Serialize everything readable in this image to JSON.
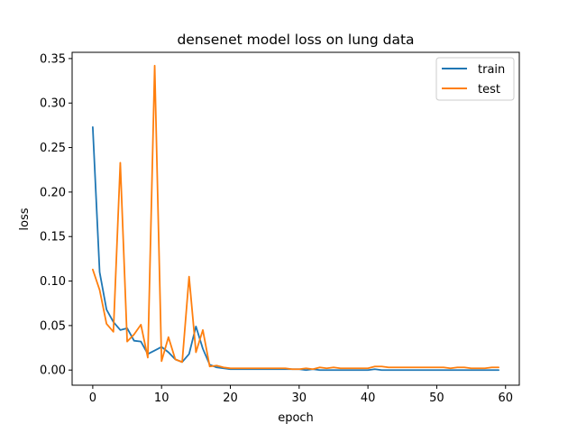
{
  "chart_data": {
    "type": "line",
    "title": "densenet model loss on lung data",
    "xlabel": "epoch",
    "ylabel": "loss",
    "xlim": [
      -3,
      62
    ],
    "ylim": [
      -0.017,
      0.357
    ],
    "xticks": [
      0,
      10,
      20,
      30,
      40,
      50,
      60
    ],
    "yticks": [
      0.0,
      0.05,
      0.1,
      0.15,
      0.2,
      0.25,
      0.3,
      0.35
    ],
    "ytick_labels": [
      "0.00",
      "0.05",
      "0.10",
      "0.15",
      "0.20",
      "0.25",
      "0.30",
      "0.35"
    ],
    "grid": false,
    "legend_position": "top-right",
    "x": [
      0,
      1,
      2,
      3,
      4,
      5,
      6,
      7,
      8,
      9,
      10,
      11,
      12,
      13,
      14,
      15,
      16,
      17,
      18,
      19,
      20,
      21,
      22,
      23,
      24,
      25,
      26,
      27,
      28,
      29,
      30,
      31,
      32,
      33,
      34,
      35,
      36,
      37,
      38,
      39,
      40,
      41,
      42,
      43,
      44,
      45,
      46,
      47,
      48,
      49,
      50,
      51,
      52,
      53,
      54,
      55,
      56,
      57,
      58,
      59
    ],
    "series": [
      {
        "name": "train",
        "color": "#1f77b4",
        "values": [
          0.273,
          0.11,
          0.068,
          0.054,
          0.045,
          0.047,
          0.033,
          0.032,
          0.018,
          0.022,
          0.026,
          0.02,
          0.012,
          0.009,
          0.018,
          0.049,
          0.024,
          0.006,
          0.003,
          0.002,
          0.001,
          0.001,
          0.001,
          0.001,
          0.001,
          0.001,
          0.001,
          0.001,
          0.001,
          0.001,
          0.001,
          0.0,
          0.001,
          0.0,
          0.0,
          0.0,
          0.0,
          0.0,
          0.0,
          0.0,
          0.0,
          0.001,
          0.0,
          0.0,
          0.0,
          0.0,
          0.0,
          0.0,
          0.0,
          0.0,
          0.0,
          0.0,
          0.0,
          0.0,
          0.0,
          0.0,
          0.0,
          0.0,
          0.0,
          0.0
        ]
      },
      {
        "name": "test",
        "color": "#ff7f0e",
        "values": [
          0.113,
          0.09,
          0.052,
          0.043,
          0.233,
          0.032,
          0.04,
          0.051,
          0.014,
          0.342,
          0.01,
          0.037,
          0.012,
          0.009,
          0.105,
          0.02,
          0.045,
          0.004,
          0.005,
          0.003,
          0.002,
          0.002,
          0.002,
          0.002,
          0.002,
          0.002,
          0.002,
          0.002,
          0.002,
          0.001,
          0.001,
          0.002,
          0.001,
          0.003,
          0.002,
          0.003,
          0.002,
          0.002,
          0.002,
          0.002,
          0.002,
          0.004,
          0.004,
          0.003,
          0.003,
          0.003,
          0.003,
          0.003,
          0.003,
          0.003,
          0.003,
          0.003,
          0.002,
          0.003,
          0.003,
          0.002,
          0.002,
          0.002,
          0.003,
          0.003
        ]
      }
    ]
  }
}
